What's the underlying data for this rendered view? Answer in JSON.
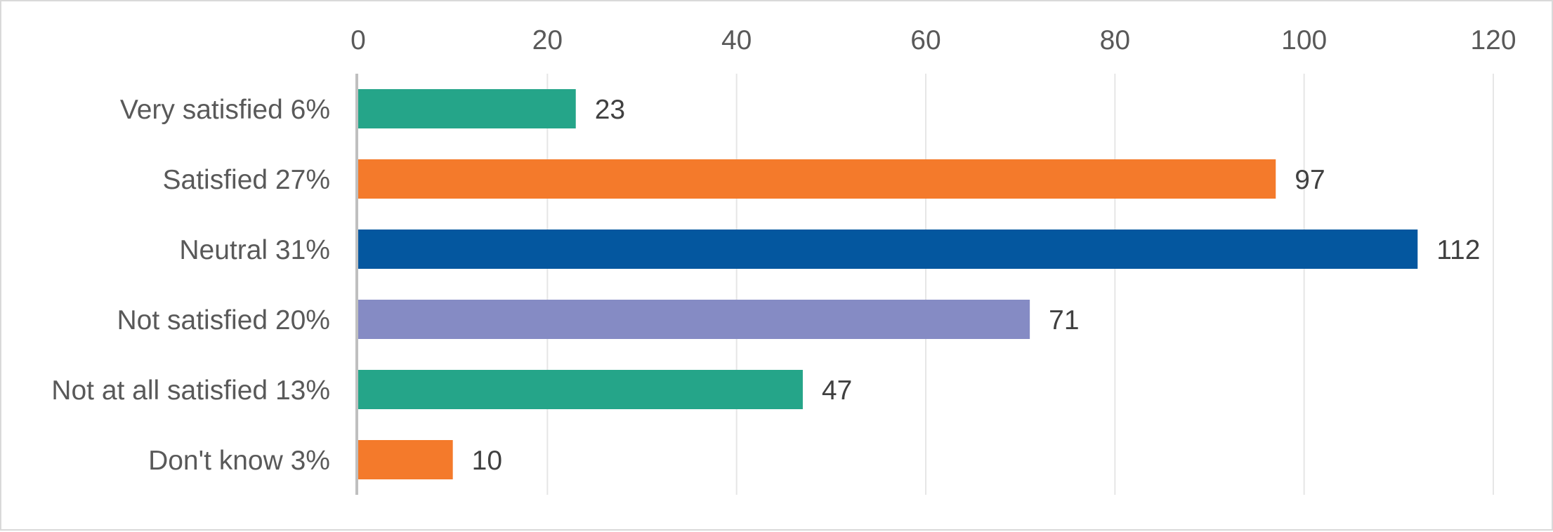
{
  "chart_data": {
    "type": "bar",
    "orientation": "horizontal",
    "categories": [
      "Very satisfied 6%",
      "Satisfied 27%",
      "Neutral 31%",
      "Not satisfied 20%",
      "Not at all satisfied 13%",
      "Don't know 3%"
    ],
    "values": [
      23,
      97,
      112,
      71,
      47,
      10
    ],
    "bar_colors": [
      "#25a589",
      "#f47a2b",
      "#04579f",
      "#858bc4",
      "#25a589",
      "#f47a2b"
    ],
    "xlim": [
      0,
      120
    ],
    "x_ticks": [
      "0",
      "20",
      "40",
      "60",
      "80",
      "100",
      "120"
    ],
    "x_axis_position": "top",
    "grid": true,
    "data_labels": [
      "23",
      "97",
      "112",
      "71",
      "47",
      "10"
    ]
  }
}
